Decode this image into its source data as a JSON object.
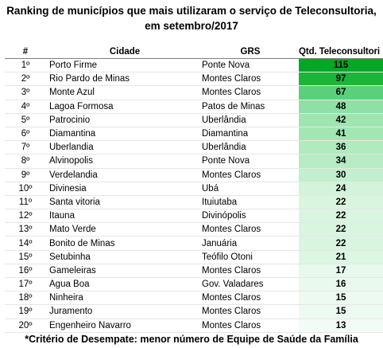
{
  "title_line1": "Ranking de municípios que mais utilizaram o serviço de Teleconsultoria,",
  "title_line2": "em setembro/2017",
  "headers": {
    "rank": "#",
    "city": "Cidade",
    "grs": "GRS",
    "qtd": "Qtd. Teleconsultori"
  },
  "rows": [
    {
      "rank": "1º",
      "city": "Porto Firme",
      "grs": "Ponte Nova",
      "qtd": "115",
      "color": "#00a825"
    },
    {
      "rank": "2º",
      "city": "Rio Pardo de Minas",
      "grs": "Montes Claros",
      "qtd": "97",
      "color": "#1bb53a"
    },
    {
      "rank": "3º",
      "city": "Monte Azul",
      "grs": "Montes Claros",
      "qtd": "67",
      "color": "#5bd07b"
    },
    {
      "rank": "4º",
      "city": "Lagoa Formosa",
      "grs": "Patos de Minas",
      "qtd": "48",
      "color": "#8fe0a5"
    },
    {
      "rank": "5º",
      "city": "Patrocinio",
      "grs": "Uberlândia",
      "qtd": "42",
      "color": "#9ee5b1"
    },
    {
      "rank": "6º",
      "city": "Diamantina",
      "grs": "Diamantina",
      "qtd": "41",
      "color": "#a2e6b4"
    },
    {
      "rank": "7º",
      "city": "Uberlandia",
      "grs": "Uberlândia",
      "qtd": "36",
      "color": "#b0eabf"
    },
    {
      "rank": "8º",
      "city": "Alvinopolis",
      "grs": "Ponte Nova",
      "qtd": "34",
      "color": "#b6ecc4"
    },
    {
      "rank": "9º",
      "city": "Verdelandia",
      "grs": "Montes Claros",
      "qtd": "30",
      "color": "#c2efce"
    },
    {
      "rank": "10º",
      "city": "Divinesia",
      "grs": "Ubá",
      "qtd": "24",
      "color": "#d3f4db"
    },
    {
      "rank": "11º",
      "city": "Santa vitoria",
      "grs": "Ituiutaba",
      "qtd": "22",
      "color": "#d9f5e0"
    },
    {
      "rank": "12º",
      "city": "Itauna",
      "grs": "Divinópolis",
      "qtd": "22",
      "color": "#d9f5e0"
    },
    {
      "rank": "13º",
      "city": "Mato Verde",
      "grs": "Montes Claros",
      "qtd": "22",
      "color": "#d9f5e0"
    },
    {
      "rank": "14º",
      "city": "Bonito de Minas",
      "grs": "Januária",
      "qtd": "22",
      "color": "#d9f5e0"
    },
    {
      "rank": "15º",
      "city": "Setubinha",
      "grs": "Teófilo Otoni",
      "qtd": "21",
      "color": "#dcf6e3"
    },
    {
      "rank": "16º",
      "city": "Gameleiras",
      "grs": "Montes Claros",
      "qtd": "17",
      "color": "#e7f9ec"
    },
    {
      "rank": "17º",
      "city": "Agua Boa",
      "grs": "Gov. Valadares",
      "qtd": "16",
      "color": "#eaf9ee"
    },
    {
      "rank": "18º",
      "city": "Ninheira",
      "grs": "Montes Claros",
      "qtd": "15",
      "color": "#edfaf1"
    },
    {
      "rank": "19º",
      "city": "Juramento",
      "grs": "Montes Claros",
      "qtd": "15",
      "color": "#edfaf1"
    },
    {
      "rank": "20º",
      "city": "Engenheiro Navarro",
      "grs": "Montes Claros",
      "qtd": "13",
      "color": "#f2fcf5"
    }
  ],
  "footer": "*Critério de Desempate: menor número de Equipe de Saúde da Família"
}
